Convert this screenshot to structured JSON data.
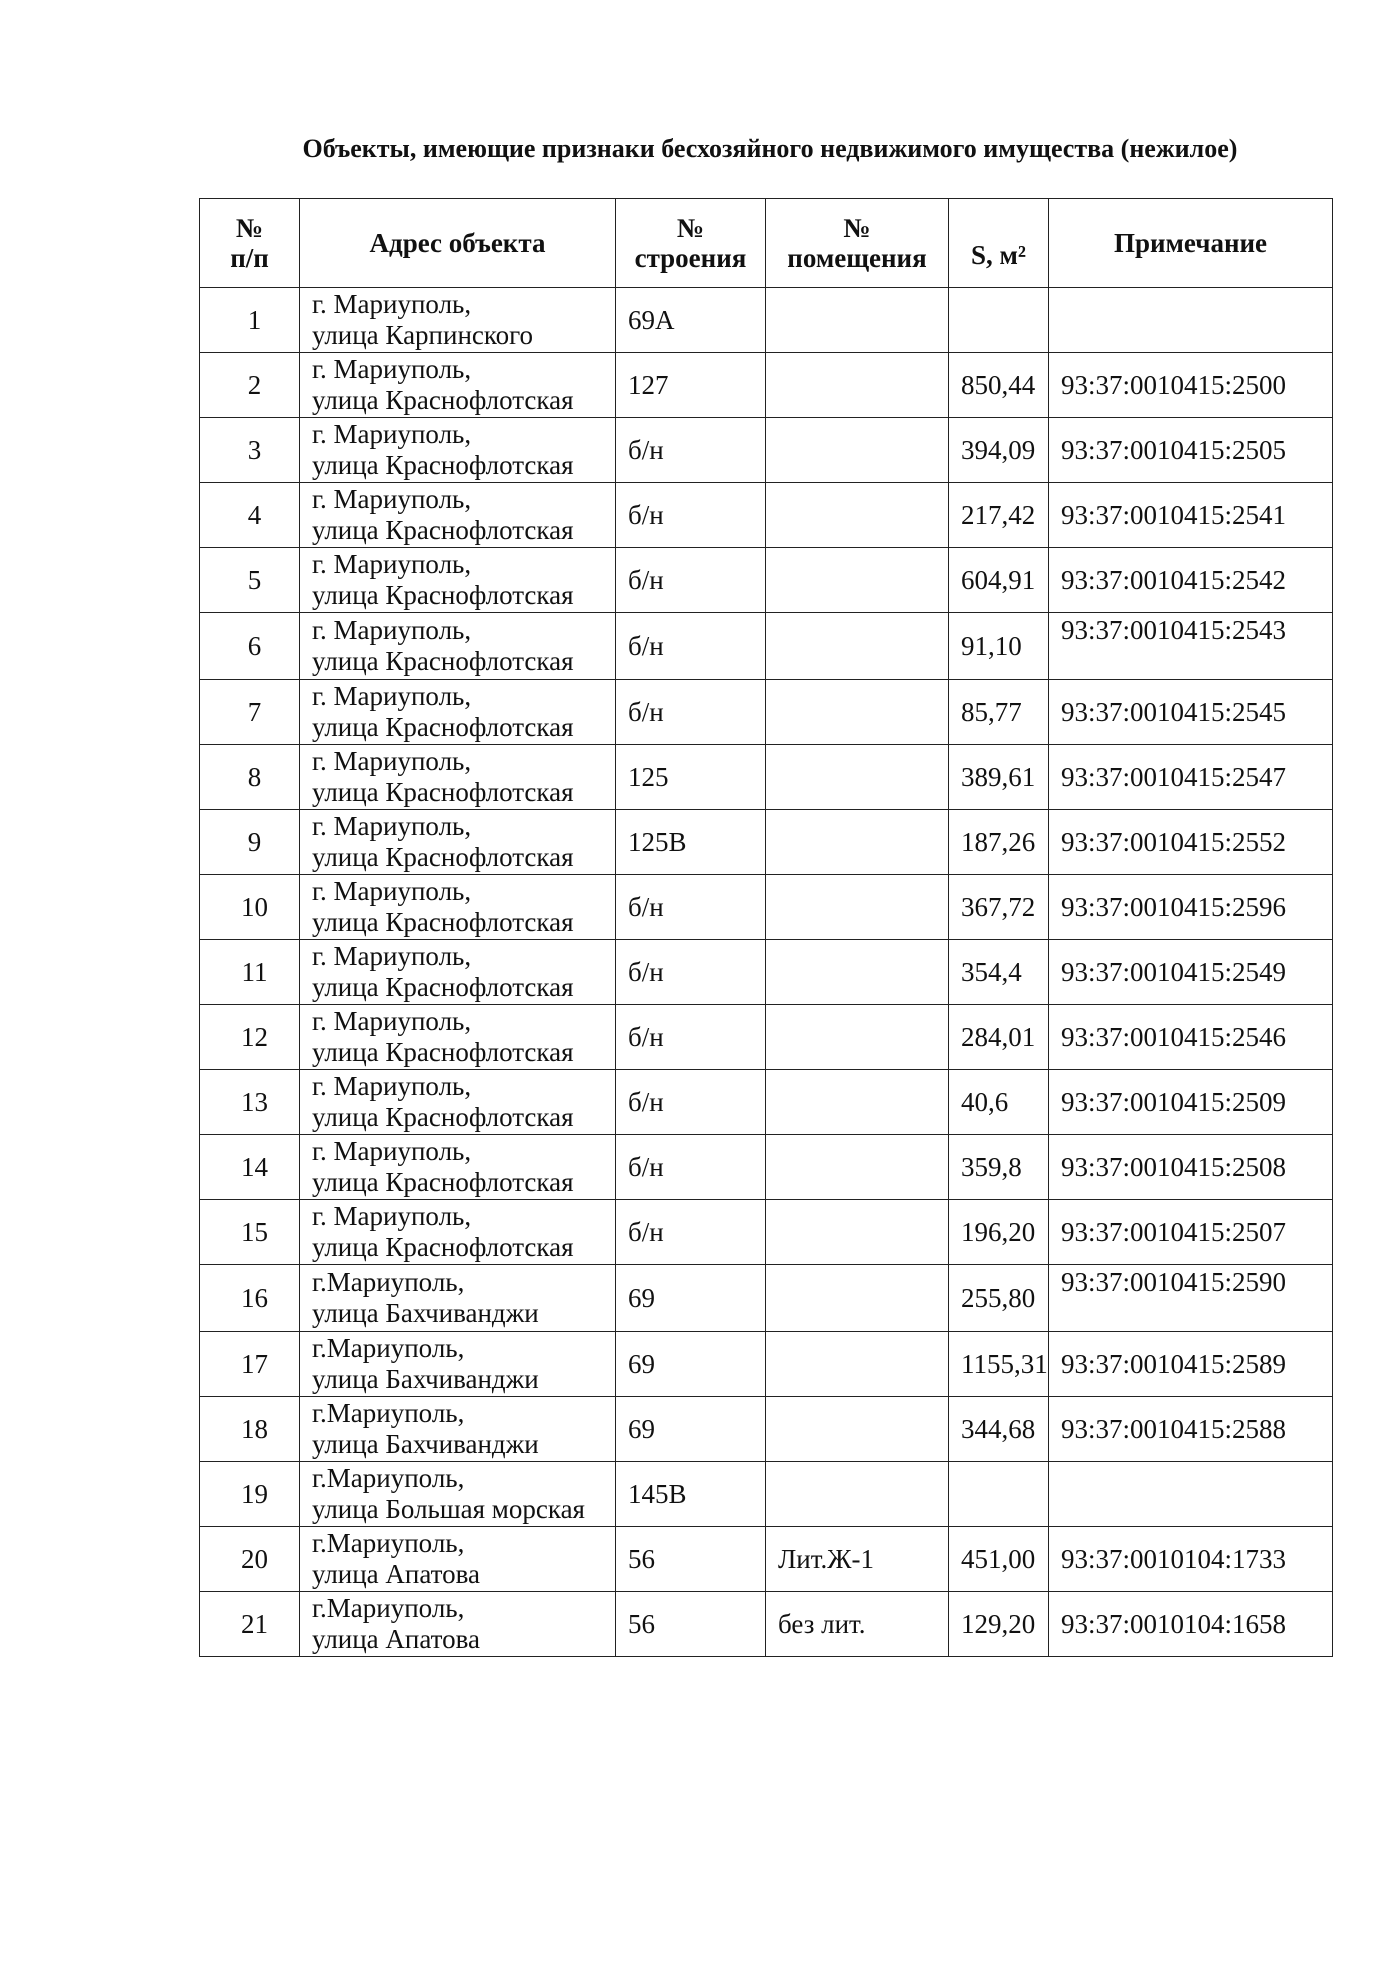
{
  "title": "Объекты, имеющие признаки бесхозяйного недвижимого имущества (нежилое)",
  "columns": {
    "num_line1": "№",
    "num_line2": "п/п",
    "address": "Адрес объекта",
    "building_line1": "№",
    "building_line2": "строения",
    "premises_line1": "№",
    "premises_line2": "помещения",
    "area": "S, м²",
    "note": "Примечание"
  },
  "rows": [
    {
      "n": "1",
      "city": "г. Мариуполь,",
      "street": "улица Карпинского",
      "building": "69А",
      "premises": "",
      "area": "",
      "note": ""
    },
    {
      "n": "2",
      "city": "г. Мариуполь,",
      "street": "улица Краснофлотская",
      "building": "127",
      "premises": "",
      "area": "850,44",
      "note": "93:37:0010415:2500"
    },
    {
      "n": "3",
      "city": "г. Мариуполь,",
      "street": "улица Краснофлотская",
      "building": "б/н",
      "premises": "",
      "area": "394,09",
      "note": "93:37:0010415:2505"
    },
    {
      "n": "4",
      "city": "г. Мариуполь,",
      "street": "улица Краснофлотская",
      "building": "б/н",
      "premises": "",
      "area": "217,42",
      "note": "93:37:0010415:2541"
    },
    {
      "n": "5",
      "city": "г. Мариуполь,",
      "street": "улица Краснофлотская",
      "building": "б/н",
      "premises": "",
      "area": "604,91",
      "note": "93:37:0010415:2542"
    },
    {
      "n": "6",
      "city": "г. Мариуполь,",
      "street": "улица Краснофлотская",
      "building": "б/н",
      "premises": "",
      "area": "91,10",
      "note": "93:37:0010415:2543",
      "top": true
    },
    {
      "n": "7",
      "city": "г. Мариуполь,",
      "street": "улица Краснофлотская",
      "building": "б/н",
      "premises": "",
      "area": "85,77",
      "note": "93:37:0010415:2545"
    },
    {
      "n": "8",
      "city": "г. Мариуполь,",
      "street": "улица Краснофлотская",
      "building": "125",
      "premises": "",
      "area": "389,61",
      "note": "93:37:0010415:2547"
    },
    {
      "n": "9",
      "city": "г. Мариуполь,",
      "street": "улица Краснофлотская",
      "building": "125В",
      "premises": "",
      "area": "187,26",
      "note": "93:37:0010415:2552"
    },
    {
      "n": "10",
      "city": "г. Мариуполь,",
      "street": "улица Краснофлотская",
      "building": "б/н",
      "premises": "",
      "area": "367,72",
      "note": "93:37:0010415:2596"
    },
    {
      "n": "11",
      "city": "г. Мариуполь,",
      "street": "улица Краснофлотская",
      "building": "б/н",
      "premises": "",
      "area": "354,4",
      "note": "93:37:0010415:2549"
    },
    {
      "n": "12",
      "city": "г. Мариуполь,",
      "street": "улица Краснофлотская",
      "building": "б/н",
      "premises": "",
      "area": "284,01",
      "note": "93:37:0010415:2546"
    },
    {
      "n": "13",
      "city": "г. Мариуполь,",
      "street": "улица Краснофлотская",
      "building": "б/н",
      "premises": "",
      "area": "40,6",
      "note": "93:37:0010415:2509"
    },
    {
      "n": "14",
      "city": "г. Мариуполь,",
      "street": "улица Краснофлотская",
      "building": "б/н",
      "premises": "",
      "area": "359,8",
      "note": "93:37:0010415:2508"
    },
    {
      "n": "15",
      "city": "г. Мариуполь,",
      "street": "улица Краснофлотская",
      "building": "б/н",
      "premises": "",
      "area": "196,20",
      "note": "93:37:0010415:2507"
    },
    {
      "n": "16",
      "city": "г.Мариуполь,",
      "street": "улица Бахчиванджи",
      "building": "69",
      "premises": "",
      "area": "255,80",
      "note": "93:37:0010415:2590",
      "top": true
    },
    {
      "n": "17",
      "city": "г.Мариуполь,",
      "street": "улица Бахчиванджи",
      "building": "69",
      "premises": "",
      "area": "1155,31",
      "note": "93:37:0010415:2589"
    },
    {
      "n": "18",
      "city": "г.Мариуполь,",
      "street": "улица Бахчиванджи",
      "building": "69",
      "premises": "",
      "area": "344,68",
      "note": "93:37:0010415:2588"
    },
    {
      "n": "19",
      "city": "г.Мариуполь,",
      "street": "улица Большая морская",
      "building": "145В",
      "premises": "",
      "area": "",
      "note": ""
    },
    {
      "n": "20",
      "city": "г.Мариуполь,",
      "street": "улица Апатова",
      "building": "56",
      "premises": "Лит.Ж-1",
      "area": "451,00",
      "note": "93:37:0010104:1733"
    },
    {
      "n": "21",
      "city": "г.Мариуполь,",
      "street": "улица Апатова",
      "building": "56",
      "premises": "без лит.",
      "area": "129,20",
      "note": "93:37:0010104:1658"
    }
  ]
}
